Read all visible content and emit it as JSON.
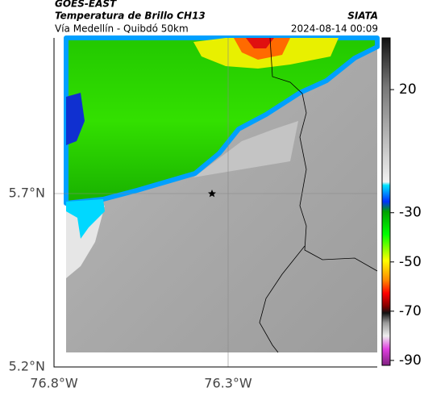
{
  "header": {
    "title": "GOES-EAST",
    "subtitle": "Temperatura de Brillo CH13",
    "source": "SIATA",
    "location": "Vía Medellín - Quibdó 50km",
    "datetime": "2024-08-14 00:09"
  },
  "map": {
    "lat_labels": [
      "5.7°N",
      "5.2°N"
    ],
    "lon_labels": [
      "76.8°W",
      "76.3°W"
    ]
  },
  "colorbar": {
    "lim": [
      -92,
      41
    ],
    "ticks": [
      20,
      -30,
      -50,
      -70,
      -90
    ]
  }
}
